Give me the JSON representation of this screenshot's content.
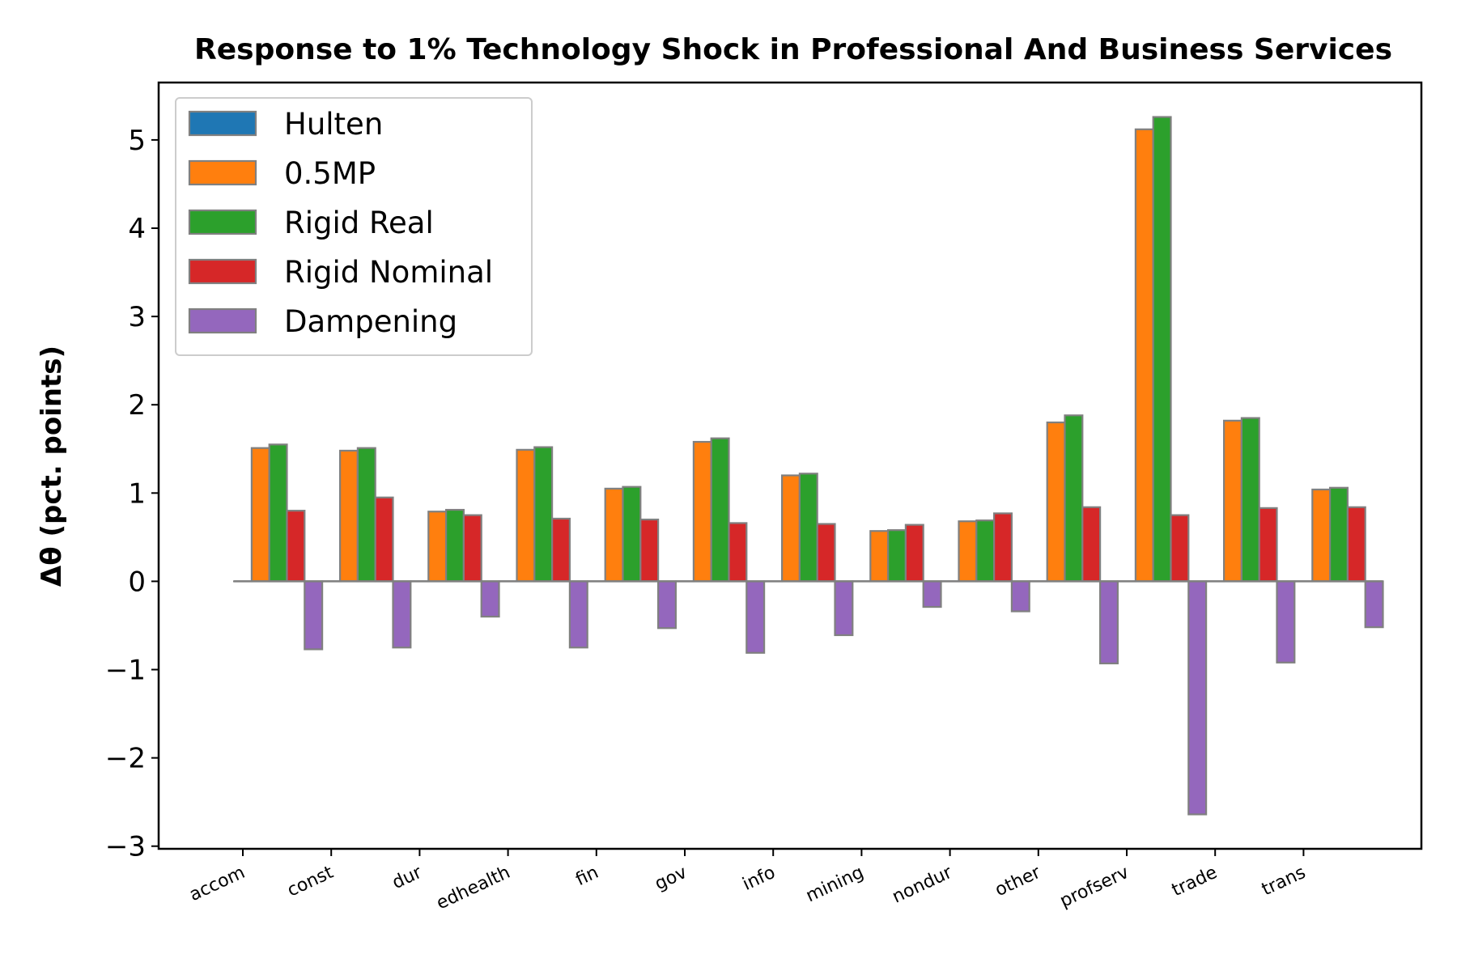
{
  "chart_data": {
    "type": "bar",
    "title": "Response to 1% Technology Shock in Professional And Business Services",
    "ylabel": "Δθ  (pct. points)",
    "xlabel": "",
    "categories": [
      "accom",
      "const",
      "dur",
      "edhealth",
      "fin",
      "gov",
      "info",
      "mining",
      "nondur",
      "other",
      "profserv",
      "trade",
      "trans"
    ],
    "ylim": [
      -3.03,
      5.65
    ],
    "yticks": [
      -3,
      -2,
      -1,
      0,
      1,
      2,
      3,
      4,
      5
    ],
    "ytick_labels": [
      "−3",
      "−2",
      "−1",
      "0",
      "1",
      "2",
      "3",
      "4",
      "5"
    ],
    "legend_position": "upper-left",
    "grid": false,
    "bar_edge_color": "#808080",
    "series": [
      {
        "name": "Hulten",
        "color": "#1f77b4",
        "values": [
          0,
          0,
          0,
          0,
          0,
          0,
          0,
          0,
          0,
          0,
          0,
          0,
          0
        ]
      },
      {
        "name": "0.5MP",
        "color": "#ff7f0e",
        "values": [
          1.51,
          1.48,
          0.79,
          1.49,
          1.05,
          1.58,
          1.2,
          0.57,
          0.68,
          1.8,
          5.12,
          1.82,
          1.04
        ]
      },
      {
        "name": "Rigid Real",
        "color": "#2ca02c",
        "values": [
          1.55,
          1.51,
          0.81,
          1.52,
          1.07,
          1.62,
          1.22,
          0.58,
          0.69,
          1.88,
          5.26,
          1.85,
          1.06
        ]
      },
      {
        "name": "Rigid Nominal",
        "color": "#d62728",
        "values": [
          0.8,
          0.95,
          0.75,
          0.71,
          0.7,
          0.66,
          0.65,
          0.64,
          0.77,
          0.84,
          0.75,
          0.83,
          0.84
        ]
      },
      {
        "name": "Dampening",
        "color": "#9467bd",
        "values": [
          -0.77,
          -0.75,
          -0.4,
          -0.75,
          -0.53,
          -0.81,
          -0.61,
          -0.29,
          -0.34,
          -0.93,
          -2.64,
          -0.92,
          -0.52
        ]
      }
    ]
  }
}
